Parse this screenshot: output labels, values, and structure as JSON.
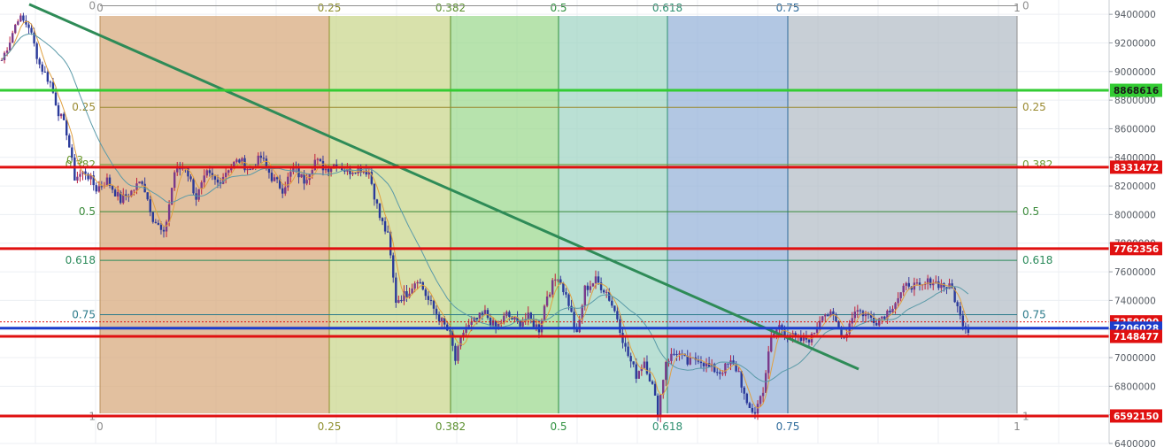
{
  "chart_data": {
    "type": "candlestick",
    "y_range": [
      6400000,
      9500000
    ],
    "y_ticks": [
      6400000,
      6600000,
      6800000,
      7000000,
      7200000,
      7400000,
      7600000,
      7800000,
      8000000,
      8200000,
      8400000,
      8600000,
      8800000,
      9000000,
      9200000,
      9400000
    ],
    "y_tick_labels": [
      "6400000",
      "6600000",
      "6800000",
      "7000000",
      "7200000",
      "7400000",
      "7600000",
      "7800000",
      "8000000",
      "8200000",
      "8400000",
      "8600000",
      "8800000",
      "9000000",
      "9200000",
      "9400000"
    ],
    "grid": true,
    "fib_time_zones": {
      "levels": [
        {
          "label": "0",
          "color": "#d7a77a"
        },
        {
          "label": "0.25",
          "color": "#c9d68a"
        },
        {
          "label": "0.382",
          "color": "#9bd88e"
        },
        {
          "label": "0.5",
          "color": "#9fd4c4"
        },
        {
          "label": "0.618",
          "color": "#94b2d8"
        },
        {
          "label": "0.75",
          "color": "#b3bcc6"
        },
        {
          "label": "1",
          "color": "#d0c0b2"
        }
      ],
      "line_colors": [
        "#b98f5c",
        "#8f8f2d",
        "#5a8f2d",
        "#2d8f3d",
        "#2d8f70",
        "#2d6a9a",
        "#8f8f8f"
      ]
    },
    "fib_retracement": {
      "levels": [
        {
          "label": "0",
          "price": 9460000,
          "color": "#8f8f8f"
        },
        {
          "label": "0.25",
          "price": 8750000,
          "color": "#9a8a30"
        },
        {
          "label": "0.382",
          "price": 8350000,
          "color": "#6e9a30"
        },
        {
          "label": "0.5",
          "price": 8020000,
          "color": "#3a8a3a"
        },
        {
          "label": "0.618",
          "price": 7680000,
          "color": "#2a8a5a"
        },
        {
          "label": "0.75",
          "price": 7300000,
          "color": "#2a7a8a"
        },
        {
          "label": "1",
          "price": 6590000,
          "color": "#8f8f8f"
        }
      ],
      "extra_left_labels": [
        "0.3"
      ]
    },
    "horizontal_lines": [
      {
        "price": 8868616,
        "label": "8868616",
        "color": "#33cc33"
      },
      {
        "price": 8331472,
        "label": "8331472",
        "color": "#e01010"
      },
      {
        "price": 7762356,
        "label": "7762356",
        "color": "#e01010"
      },
      {
        "price": 7250000,
        "label": "7250000",
        "color": "#e01010",
        "dotted": true
      },
      {
        "price": 7206028,
        "label": "7206028",
        "color": "#1c3dcc"
      },
      {
        "price": 7148477,
        "label": "7148477",
        "color": "#e01010"
      },
      {
        "price": 6592150,
        "label": "6592150",
        "color": "#e01010"
      }
    ],
    "trend_line": {
      "from_price": 9470000,
      "to_price": 6920000,
      "color": "#2e8b57"
    },
    "price_path": [
      {
        "i": 0,
        "p": 9080000
      },
      {
        "i": 3,
        "p": 9220000
      },
      {
        "i": 6,
        "p": 9380000
      },
      {
        "i": 10,
        "p": 9320000
      },
      {
        "i": 14,
        "p": 9050000
      },
      {
        "i": 18,
        "p": 8920000
      },
      {
        "i": 21,
        "p": 8720000
      },
      {
        "i": 24,
        "p": 8580000
      },
      {
        "i": 27,
        "p": 8260000
      },
      {
        "i": 31,
        "p": 8300000
      },
      {
        "i": 35,
        "p": 8180000
      },
      {
        "i": 39,
        "p": 8240000
      },
      {
        "i": 44,
        "p": 8100000
      },
      {
        "i": 48,
        "p": 8160000
      },
      {
        "i": 52,
        "p": 8240000
      },
      {
        "i": 56,
        "p": 7980000
      },
      {
        "i": 60,
        "p": 7850000
      },
      {
        "i": 64,
        "p": 8300000
      },
      {
        "i": 68,
        "p": 8340000
      },
      {
        "i": 72,
        "p": 8120000
      },
      {
        "i": 76,
        "p": 8280000
      },
      {
        "i": 80,
        "p": 8220000
      },
      {
        "i": 84,
        "p": 8330000
      },
      {
        "i": 88,
        "p": 8380000
      },
      {
        "i": 92,
        "p": 8310000
      },
      {
        "i": 96,
        "p": 8400000
      },
      {
        "i": 100,
        "p": 8260000
      },
      {
        "i": 104,
        "p": 8180000
      },
      {
        "i": 108,
        "p": 8320000
      },
      {
        "i": 112,
        "p": 8240000
      },
      {
        "i": 116,
        "p": 8380000
      },
      {
        "i": 120,
        "p": 8320000
      },
      {
        "i": 124,
        "p": 8360000
      },
      {
        "i": 128,
        "p": 8300000
      },
      {
        "i": 132,
        "p": 8330000
      },
      {
        "i": 136,
        "p": 8300000
      },
      {
        "i": 140,
        "p": 7980000
      },
      {
        "i": 143,
        "p": 7850000
      },
      {
        "i": 146,
        "p": 7400000
      },
      {
        "i": 150,
        "p": 7450000
      },
      {
        "i": 154,
        "p": 7560000
      },
      {
        "i": 158,
        "p": 7400000
      },
      {
        "i": 162,
        "p": 7280000
      },
      {
        "i": 166,
        "p": 7160000
      },
      {
        "i": 168,
        "p": 6980000
      },
      {
        "i": 171,
        "p": 7180000
      },
      {
        "i": 175,
        "p": 7250000
      },
      {
        "i": 179,
        "p": 7310000
      },
      {
        "i": 183,
        "p": 7200000
      },
      {
        "i": 187,
        "p": 7300000
      },
      {
        "i": 191,
        "p": 7240000
      },
      {
        "i": 195,
        "p": 7280000
      },
      {
        "i": 199,
        "p": 7200000
      },
      {
        "i": 202,
        "p": 7440000
      },
      {
        "i": 206,
        "p": 7580000
      },
      {
        "i": 210,
        "p": 7380000
      },
      {
        "i": 213,
        "p": 7150000
      },
      {
        "i": 216,
        "p": 7480000
      },
      {
        "i": 220,
        "p": 7540000
      },
      {
        "i": 224,
        "p": 7460000
      },
      {
        "i": 228,
        "p": 7280000
      },
      {
        "i": 231,
        "p": 7060000
      },
      {
        "i": 235,
        "p": 6880000
      },
      {
        "i": 238,
        "p": 6980000
      },
      {
        "i": 241,
        "p": 6800000
      },
      {
        "i": 243,
        "p": 6620000
      },
      {
        "i": 246,
        "p": 6980000
      },
      {
        "i": 250,
        "p": 7040000
      },
      {
        "i": 254,
        "p": 6960000
      },
      {
        "i": 258,
        "p": 7000000
      },
      {
        "i": 262,
        "p": 6930000
      },
      {
        "i": 266,
        "p": 6900000
      },
      {
        "i": 270,
        "p": 6960000
      },
      {
        "i": 273,
        "p": 6900000
      },
      {
        "i": 276,
        "p": 6650000
      },
      {
        "i": 279,
        "p": 6620000
      },
      {
        "i": 282,
        "p": 6780000
      },
      {
        "i": 285,
        "p": 7140000
      },
      {
        "i": 288,
        "p": 7220000
      },
      {
        "i": 292,
        "p": 7150000
      },
      {
        "i": 296,
        "p": 7120000
      },
      {
        "i": 300,
        "p": 7140000
      },
      {
        "i": 304,
        "p": 7320000
      },
      {
        "i": 308,
        "p": 7280000
      },
      {
        "i": 312,
        "p": 7140000
      },
      {
        "i": 316,
        "p": 7340000
      },
      {
        "i": 320,
        "p": 7300000
      },
      {
        "i": 324,
        "p": 7260000
      },
      {
        "i": 328,
        "p": 7320000
      },
      {
        "i": 332,
        "p": 7420000
      },
      {
        "i": 336,
        "p": 7520000
      },
      {
        "i": 340,
        "p": 7480000
      },
      {
        "i": 344,
        "p": 7540000
      },
      {
        "i": 348,
        "p": 7510000
      },
      {
        "i": 352,
        "p": 7480000
      },
      {
        "i": 355,
        "p": 7280000
      },
      {
        "i": 358,
        "p": 7200000
      }
    ]
  }
}
